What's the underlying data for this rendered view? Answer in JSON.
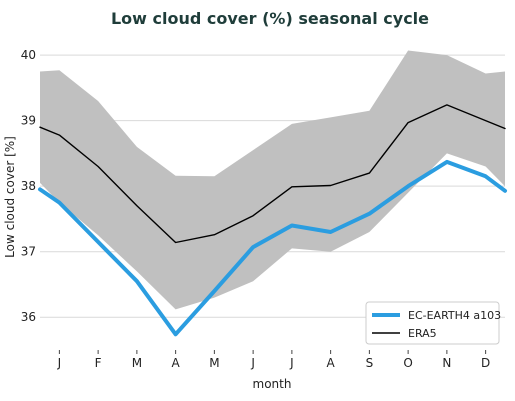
{
  "chart_data": {
    "type": "line",
    "title": "Low cloud cover (%) seasonal cycle",
    "xlabel": "month",
    "ylabel": "Low cloud cover [%]",
    "ylim": [
      35.5,
      40.2
    ],
    "yticks": [
      36,
      37,
      38,
      39,
      40
    ],
    "x": [
      0.5,
      1,
      2,
      3,
      4,
      5,
      6,
      7,
      8,
      9,
      10,
      11,
      12,
      12.5
    ],
    "tick_positions": [
      1,
      2,
      3,
      4,
      5,
      6,
      7,
      8,
      9,
      10,
      11,
      12
    ],
    "tick_labels": [
      "J",
      "F",
      "M",
      "A",
      "M",
      "J",
      "J",
      "A",
      "S",
      "O",
      "N",
      "D"
    ],
    "grid": "horizontal",
    "legend_position": "bottom-right",
    "band": {
      "upper": [
        39.75,
        39.77,
        39.3,
        38.6,
        38.16,
        38.15,
        38.55,
        38.95,
        39.05,
        39.15,
        40.07,
        40.0,
        39.72,
        39.75
      ],
      "lower": [
        38.05,
        37.75,
        37.25,
        36.7,
        36.12,
        36.3,
        36.55,
        37.05,
        37.0,
        37.3,
        37.9,
        38.5,
        38.3,
        38.0
      ],
      "color": "#c0c0c0"
    },
    "series": [
      {
        "name": "EC-EARTH4 a103",
        "color": "#2b9de0",
        "values": [
          37.95,
          37.75,
          37.15,
          36.55,
          35.74,
          36.4,
          37.07,
          37.4,
          37.3,
          37.58,
          38.0,
          38.37,
          38.15,
          37.93
        ]
      },
      {
        "name": "ERA5",
        "color": "#000000",
        "values": [
          38.9,
          38.78,
          38.3,
          37.7,
          37.14,
          37.26,
          37.55,
          37.99,
          38.01,
          38.2,
          38.97,
          39.24,
          39.0,
          38.88
        ]
      }
    ]
  }
}
